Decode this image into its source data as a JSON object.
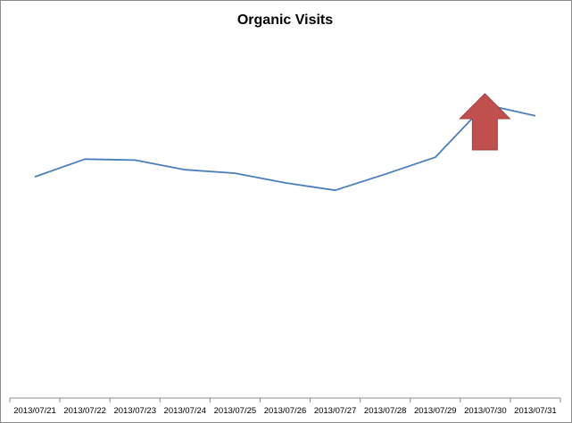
{
  "chart_data": {
    "type": "line",
    "title": "Organic Visits",
    "xlabel": "",
    "ylabel": "",
    "categories": [
      "2013/07/21",
      "2013/07/22",
      "2013/07/23",
      "2013/07/24",
      "2013/07/25",
      "2013/07/26",
      "2013/07/27",
      "2013/07/28",
      "2013/07/29",
      "2013/07/30",
      "2013/07/31"
    ],
    "series": [
      {
        "values": [
          690,
          745,
          742,
          712,
          701,
          671,
          648,
          698,
          751,
          915,
          880
        ],
        "color": "#4a7ebb"
      }
    ],
    "ylim": [
      0,
      1130
    ],
    "grid": false,
    "legend": "none",
    "annotation": {
      "shape": "up-arrow",
      "color": "#c0504d",
      "near_category": "2013/07/30"
    }
  }
}
